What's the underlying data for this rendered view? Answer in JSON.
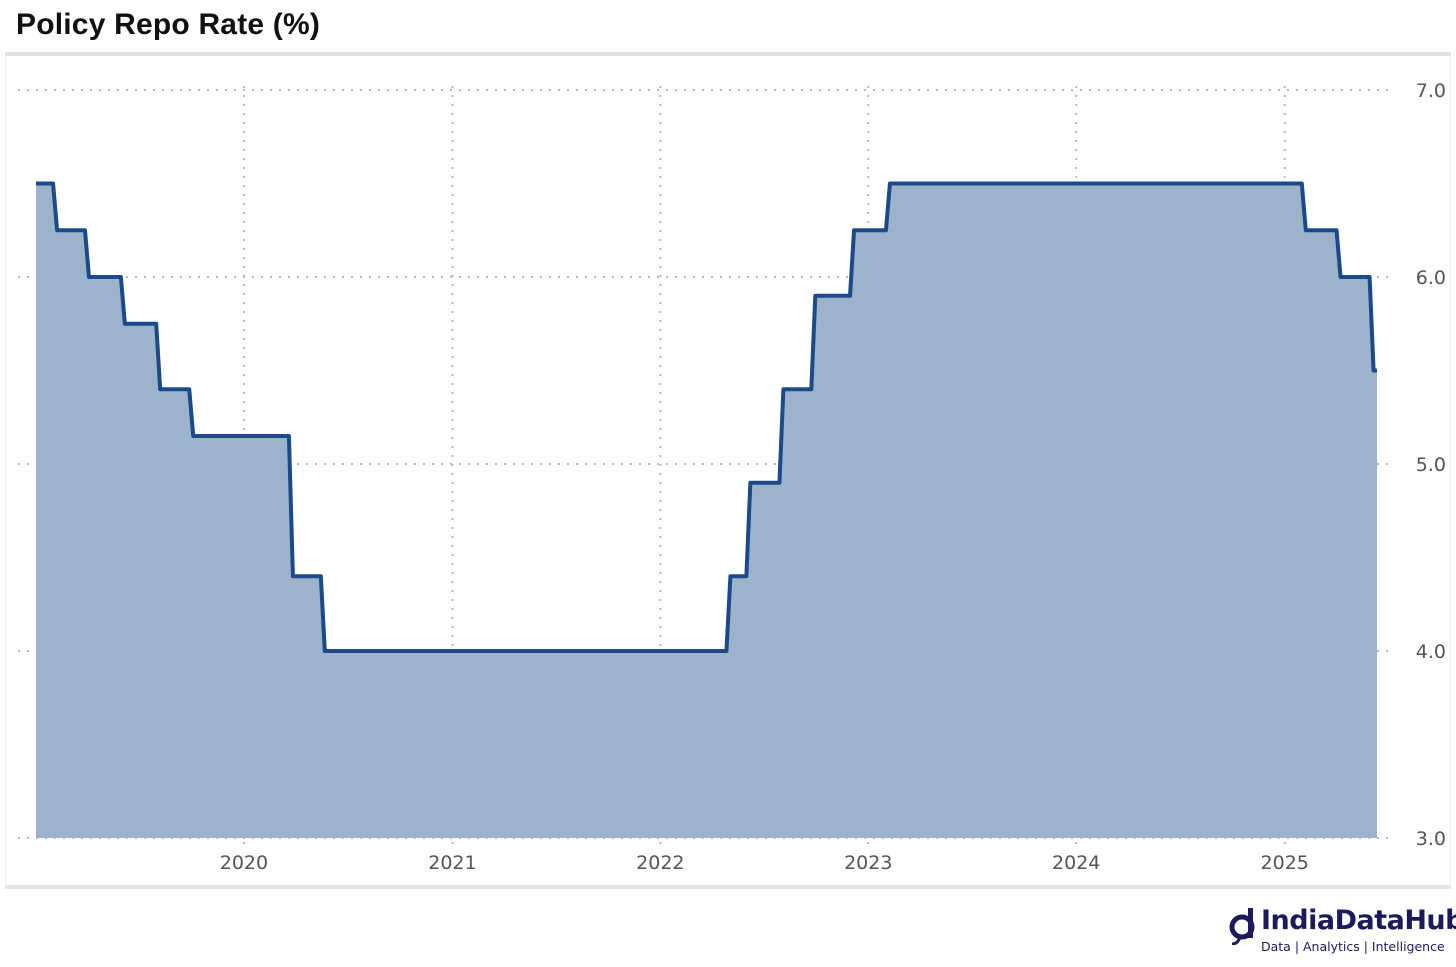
{
  "title": "Policy Repo Rate (%)",
  "brand": {
    "name": "IndiaDataHub",
    "tagline": "Data | Analytics | Intelligence",
    "color": "#1d1a5c"
  },
  "chart_data": {
    "type": "area",
    "title": "Policy Repo Rate (%)",
    "xlabel": "",
    "ylabel": "",
    "step": true,
    "grid": true,
    "y_axis_side": "right",
    "ylim": [
      3.0,
      7.0
    ],
    "xlim": [
      "2019-01-01",
      "2025-06-12"
    ],
    "y_ticks": [
      3.0,
      4.0,
      5.0,
      6.0,
      7.0
    ],
    "y_tick_labels": [
      "3.0",
      "4.0",
      "5.0",
      "6.0",
      "7.0"
    ],
    "x_ticks": [
      "2020-01-01",
      "2021-01-01",
      "2022-01-01",
      "2023-01-01",
      "2024-01-01",
      "2025-01-01"
    ],
    "x_tick_labels": [
      "2020",
      "2021",
      "2022",
      "2023",
      "2024",
      "2025"
    ],
    "line_color": "#1a4a8a",
    "fill_color": "#9db2cb",
    "series": [
      {
        "points": [
          {
            "date": "2019-01-01",
            "value": 6.5
          },
          {
            "date": "2019-02-07",
            "value": 6.25
          },
          {
            "date": "2019-04-04",
            "value": 6.0
          },
          {
            "date": "2019-06-06",
            "value": 5.75
          },
          {
            "date": "2019-08-07",
            "value": 5.4
          },
          {
            "date": "2019-10-04",
            "value": 5.15
          },
          {
            "date": "2020-03-27",
            "value": 4.4
          },
          {
            "date": "2020-05-22",
            "value": 4.0
          },
          {
            "date": "2022-05-04",
            "value": 4.4
          },
          {
            "date": "2022-06-08",
            "value": 4.9
          },
          {
            "date": "2022-08-05",
            "value": 5.4
          },
          {
            "date": "2022-09-30",
            "value": 5.9
          },
          {
            "date": "2022-12-07",
            "value": 6.25
          },
          {
            "date": "2023-02-08",
            "value": 6.5
          },
          {
            "date": "2025-02-07",
            "value": 6.25
          },
          {
            "date": "2025-04-09",
            "value": 6.0
          },
          {
            "date": "2025-06-06",
            "value": 5.5
          },
          {
            "date": "2025-06-12",
            "value": 5.5
          }
        ]
      }
    ]
  }
}
